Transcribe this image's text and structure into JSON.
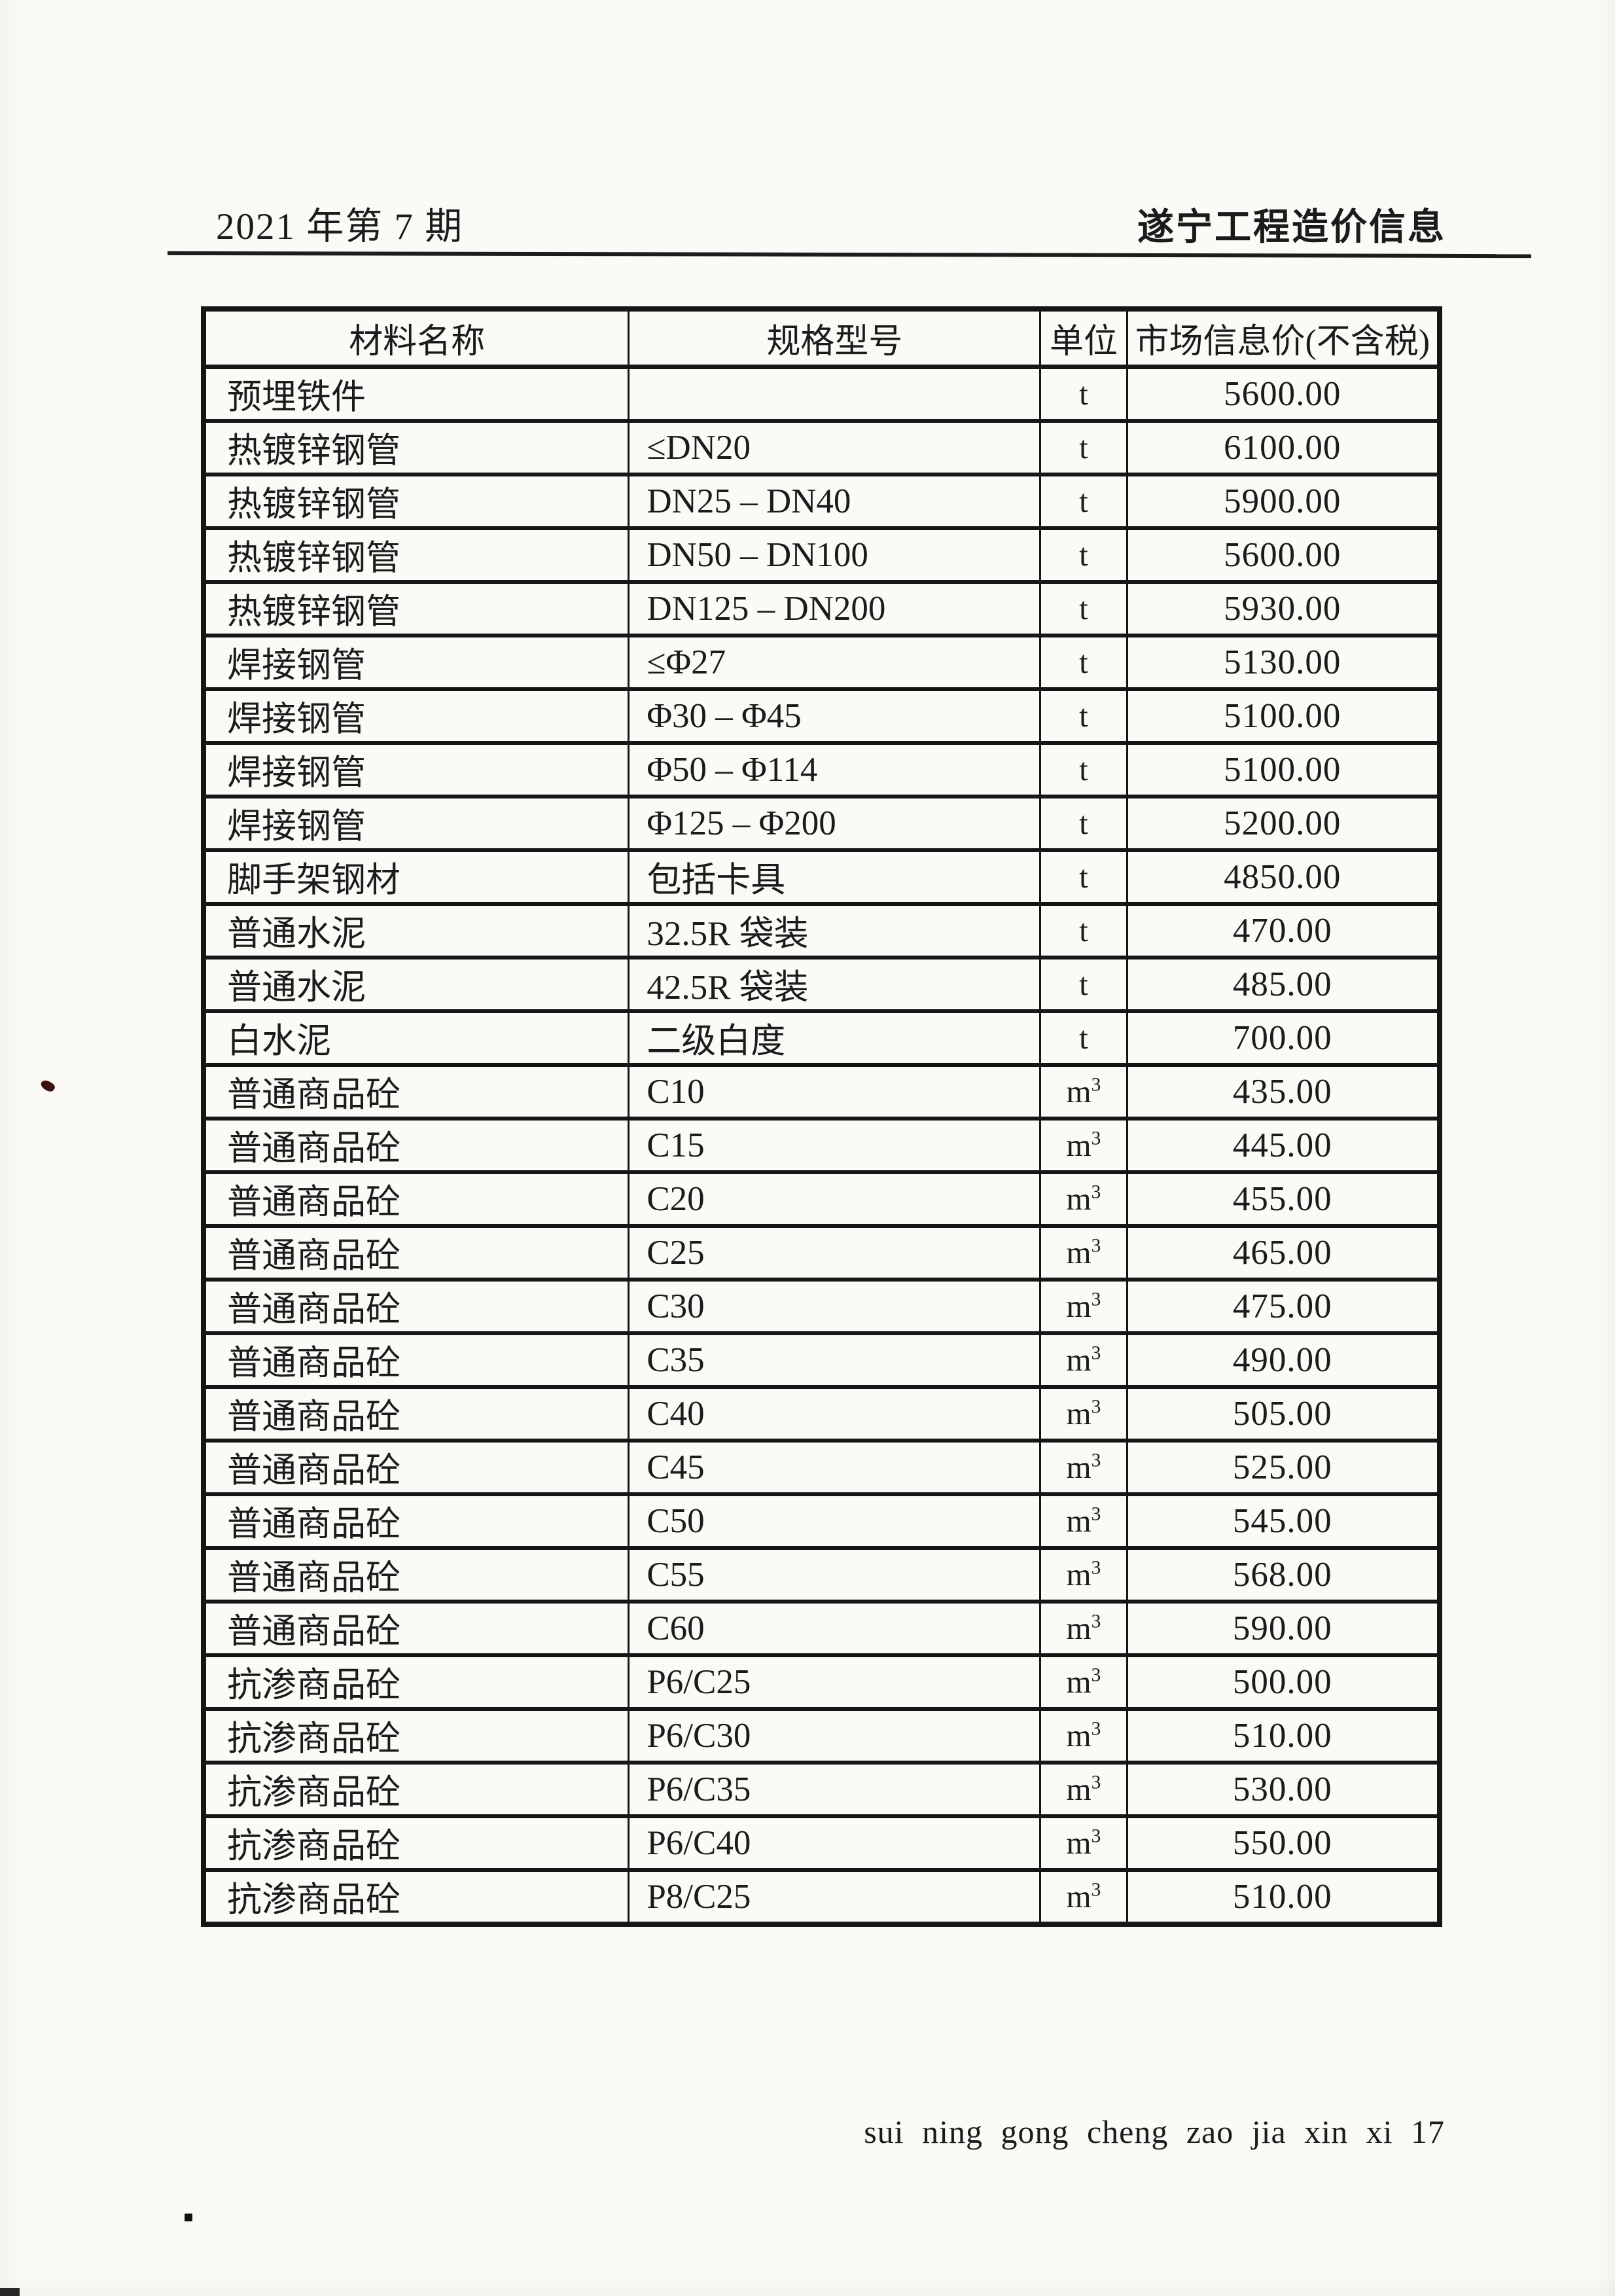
{
  "page": {
    "issue_label": "2021 年第 7 期",
    "publication_title": "遂宁工程造价信息",
    "footer_pinyin": "sui ning gong cheng zao jia xin xi 17"
  },
  "table": {
    "columns": [
      "材料名称",
      "规格型号",
      "单位",
      "市场信息价(不含税)"
    ],
    "rows": [
      {
        "name": "预埋铁件",
        "spec": "",
        "unit": "t",
        "price": "5600.00"
      },
      {
        "name": "热镀锌钢管",
        "spec": "≤DN20",
        "unit": "t",
        "price": "6100.00"
      },
      {
        "name": "热镀锌钢管",
        "spec": "DN25 – DN40",
        "unit": "t",
        "price": "5900.00"
      },
      {
        "name": "热镀锌钢管",
        "spec": "DN50 – DN100",
        "unit": "t",
        "price": "5600.00"
      },
      {
        "name": "热镀锌钢管",
        "spec": "DN125 – DN200",
        "unit": "t",
        "price": "5930.00"
      },
      {
        "name": "焊接钢管",
        "spec": "≤Φ27",
        "unit": "t",
        "price": "5130.00"
      },
      {
        "name": "焊接钢管",
        "spec": "Φ30 – Φ45",
        "unit": "t",
        "price": "5100.00"
      },
      {
        "name": "焊接钢管",
        "spec": "Φ50 – Φ114",
        "unit": "t",
        "price": "5100.00"
      },
      {
        "name": "焊接钢管",
        "spec": "Φ125 – Φ200",
        "unit": "t",
        "price": "5200.00"
      },
      {
        "name": "脚手架钢材",
        "spec": "包括卡具",
        "unit": "t",
        "price": "4850.00"
      },
      {
        "name": "普通水泥",
        "spec": "32.5R 袋装",
        "unit": "t",
        "price": "470.00"
      },
      {
        "name": "普通水泥",
        "spec": "42.5R 袋装",
        "unit": "t",
        "price": "485.00"
      },
      {
        "name": "白水泥",
        "spec": "二级白度",
        "unit": "t",
        "price": "700.00"
      },
      {
        "name": "普通商品砼",
        "spec": "C10",
        "unit": "m³",
        "price": "435.00"
      },
      {
        "name": "普通商品砼",
        "spec": "C15",
        "unit": "m³",
        "price": "445.00"
      },
      {
        "name": "普通商品砼",
        "spec": "C20",
        "unit": "m³",
        "price": "455.00"
      },
      {
        "name": "普通商品砼",
        "spec": "C25",
        "unit": "m³",
        "price": "465.00"
      },
      {
        "name": "普通商品砼",
        "spec": "C30",
        "unit": "m³",
        "price": "475.00"
      },
      {
        "name": "普通商品砼",
        "spec": "C35",
        "unit": "m³",
        "price": "490.00"
      },
      {
        "name": "普通商品砼",
        "spec": "C40",
        "unit": "m³",
        "price": "505.00"
      },
      {
        "name": "普通商品砼",
        "spec": "C45",
        "unit": "m³",
        "price": "525.00"
      },
      {
        "name": "普通商品砼",
        "spec": "C50",
        "unit": "m³",
        "price": "545.00"
      },
      {
        "name": "普通商品砼",
        "spec": "C55",
        "unit": "m³",
        "price": "568.00"
      },
      {
        "name": "普通商品砼",
        "spec": "C60",
        "unit": "m³",
        "price": "590.00"
      },
      {
        "name": "抗渗商品砼",
        "spec": "P6/C25",
        "unit": "m³",
        "price": "500.00"
      },
      {
        "name": "抗渗商品砼",
        "spec": "P6/C30",
        "unit": "m³",
        "price": "510.00"
      },
      {
        "name": "抗渗商品砼",
        "spec": "P6/C35",
        "unit": "m³",
        "price": "530.00"
      },
      {
        "name": "抗渗商品砼",
        "spec": "P6/C40",
        "unit": "m³",
        "price": "550.00"
      },
      {
        "name": "抗渗商品砼",
        "spec": "P8/C25",
        "unit": "m³",
        "price": "510.00"
      }
    ]
  }
}
